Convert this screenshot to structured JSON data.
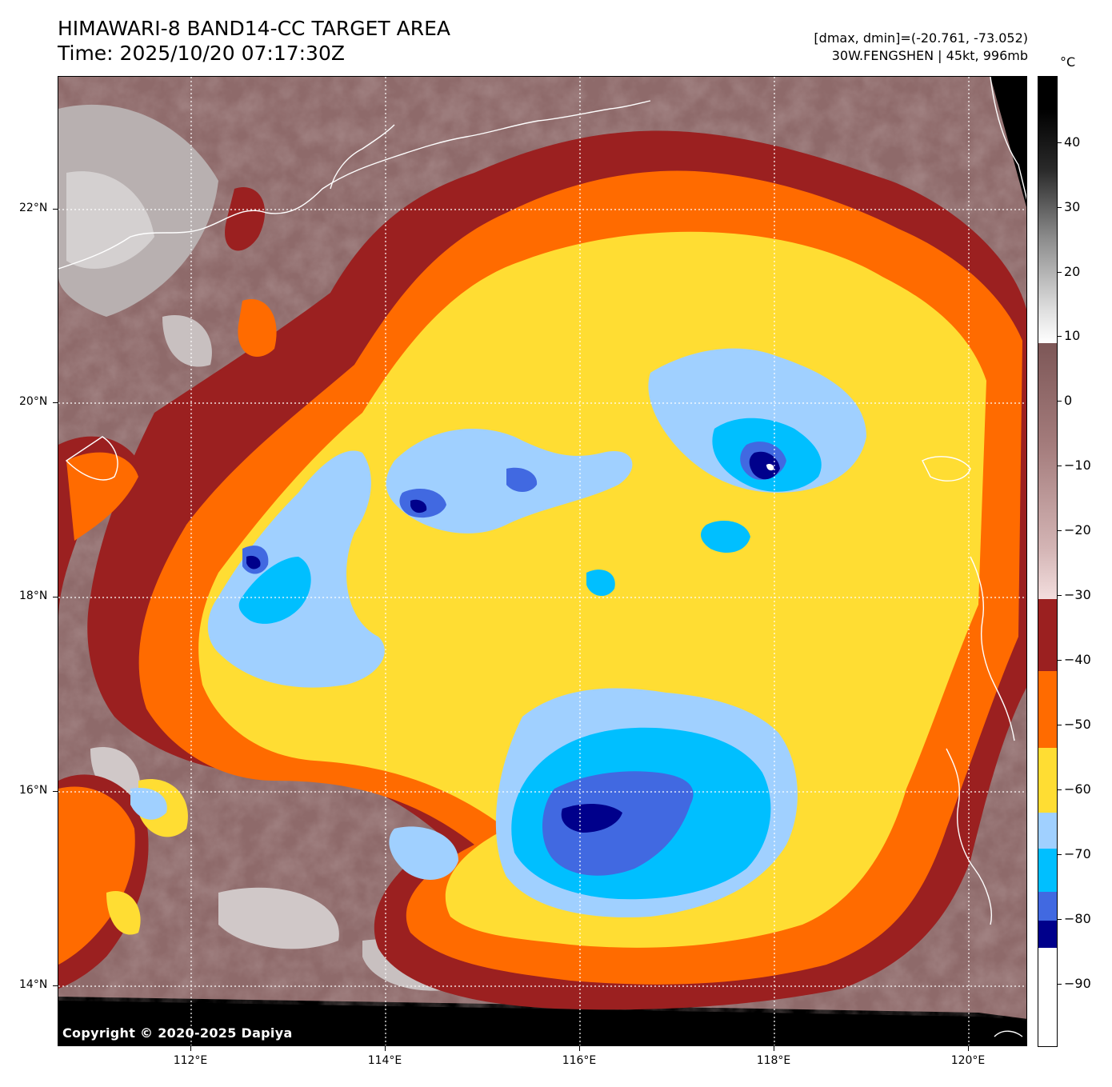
{
  "header": {
    "title_line1": "HIMAWARI-8 BAND14-CC TARGET AREA",
    "title_line2": "Time: 2025/10/20 07:17:30Z",
    "stats": "[dmax, dmin]=(-20.761, -73.052)",
    "storm": "30W.FENGSHEN | 45kt, 996mb"
  },
  "map": {
    "copyright": "Copyright © 2020-2025 Dapiya",
    "lat_labels": [
      "22°N",
      "20°N",
      "18°N",
      "16°N",
      "14°N"
    ],
    "lon_labels": [
      "112°E",
      "114°E",
      "116°E",
      "118°E",
      "120°E"
    ],
    "colors": {
      "frame": "#000000",
      "gridline": "#ffffff",
      "coastline": "#ffffff",
      "clear_sky": "#7d5a5a",
      "cold_tops": [
        "#9b2020",
        "#ff6b00",
        "#ffdd33",
        "#a0d0ff",
        "#00bfff",
        "#4169e1",
        "#00008b",
        "#ffffff"
      ]
    }
  },
  "colorbar": {
    "unit": "°C",
    "ticks": [
      "40",
      "30",
      "20",
      "10",
      "0",
      "−10",
      "−20",
      "−30",
      "−40",
      "−50",
      "−60",
      "−70",
      "−80",
      "−90"
    ],
    "segments": [
      {
        "color": "#ffffff"
      },
      {
        "color": "#00008b"
      },
      {
        "color": "#4169e1"
      },
      {
        "color": "#00bfff"
      },
      {
        "color": "#a0d0ff"
      },
      {
        "color": "#ffdd33"
      },
      {
        "color": "#ff6b00"
      },
      {
        "color": "#9b2020"
      }
    ]
  }
}
